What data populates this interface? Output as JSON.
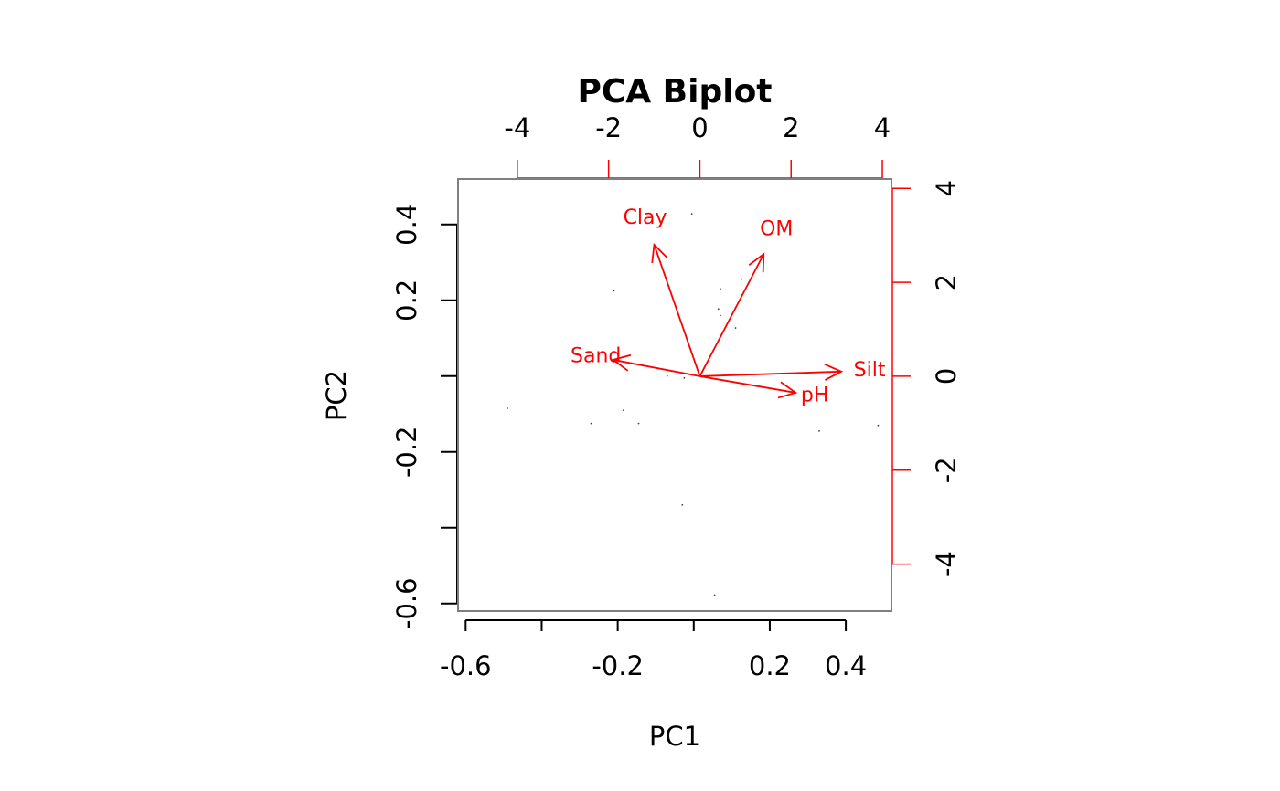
{
  "chart_data": {
    "type": "scatter",
    "subtype": "pca-biplot",
    "title": "PCA Biplot",
    "xlabel": "PC1",
    "ylabel": "PC2",
    "primary_axes": {
      "xlim": [
        -0.62,
        0.52
      ],
      "ylim": [
        -0.62,
        0.52
      ],
      "x_ticks": [
        -0.6,
        -0.4,
        -0.2,
        0,
        0.2,
        0.4
      ],
      "x_tick_labels": [
        "-0.6",
        "",
        "-0.2",
        "",
        "0.2",
        "0.4"
      ],
      "y_ticks": [
        -0.6,
        -0.4,
        -0.2,
        0,
        0.2,
        0.4
      ],
      "y_tick_labels": [
        "-0.6",
        "",
        "-0.2",
        "",
        "0.2",
        "0.4"
      ]
    },
    "secondary_axes": {
      "color": "#ff0000",
      "xlim": [
        -5.3,
        4.2
      ],
      "ylim": [
        -5.0,
        4.2
      ],
      "x_ticks": [
        -4,
        -2,
        0,
        2,
        4
      ],
      "x_tick_labels": [
        "-4",
        "-2",
        "0",
        "2",
        "4"
      ],
      "y_ticks": [
        -4,
        -2,
        0,
        2,
        4
      ],
      "y_tick_labels": [
        "-4",
        "-2",
        "0",
        "2",
        "4"
      ]
    },
    "points": [
      {
        "x": -0.49,
        "y": -0.085
      },
      {
        "x": -0.27,
        "y": -0.125
      },
      {
        "x": -0.21,
        "y": 0.225
      },
      {
        "x": -0.185,
        "y": -0.09
      },
      {
        "x": -0.145,
        "y": -0.125
      },
      {
        "x": -0.07,
        "y": 0.0
      },
      {
        "x": -0.025,
        "y": -0.005
      },
      {
        "x": -0.03,
        "y": -0.34
      },
      {
        "x": -0.005,
        "y": 0.428
      },
      {
        "x": 0.055,
        "y": -0.578
      },
      {
        "x": 0.065,
        "y": 0.177
      },
      {
        "x": 0.07,
        "y": 0.16
      },
      {
        "x": 0.07,
        "y": 0.23
      },
      {
        "x": 0.11,
        "y": 0.127
      },
      {
        "x": 0.125,
        "y": 0.255
      },
      {
        "x": 0.33,
        "y": -0.145
      },
      {
        "x": 0.485,
        "y": -0.13
      }
    ],
    "loadings": [
      {
        "name": "Clay",
        "x": -1.0,
        "y": 2.8
      },
      {
        "name": "OM",
        "x": 1.4,
        "y": 2.6
      },
      {
        "name": "Sand",
        "x": -1.9,
        "y": 0.35
      },
      {
        "name": "Silt",
        "x": 3.1,
        "y": 0.1
      },
      {
        "name": "pH",
        "x": 2.1,
        "y": -0.35
      }
    ],
    "grid": false,
    "legend": "none",
    "colors": {
      "points": "#444444",
      "loadings": "#ff0000",
      "box": "#7f7f7f",
      "axes": "#000000"
    }
  }
}
